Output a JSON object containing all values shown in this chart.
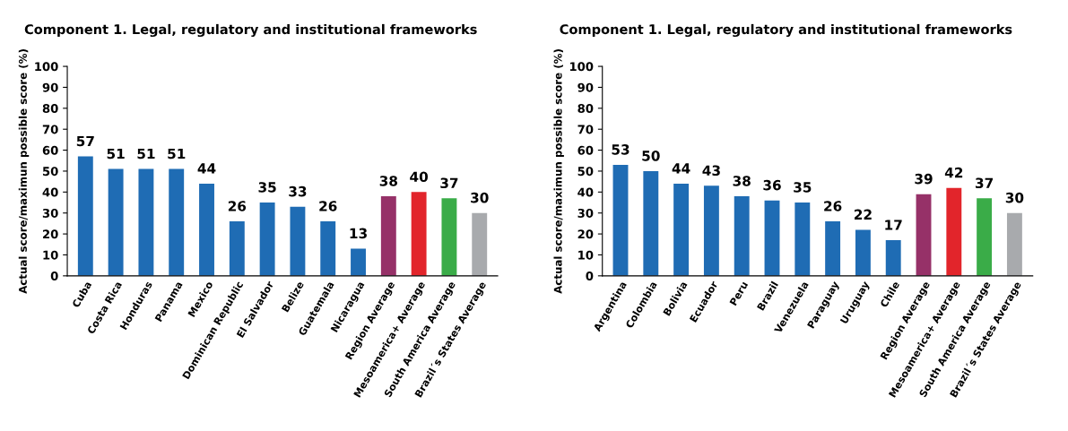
{
  "chart_data": [
    {
      "type": "bar",
      "title": "Component 1. Legal, regulatory and institutional frameworks",
      "ylabel": "Actual score/maximun possible score (%)",
      "categories": [
        "Cuba",
        "Costa Rica",
        "Honduras",
        "Panama",
        "Mexico",
        "Dominican Republic",
        "El Salvador",
        "Belize",
        "Guatemala",
        "Nicaragua",
        "Region Average",
        "Mesoamerica+ Average",
        "South America Average",
        "Brazil´s States Average"
      ],
      "values": [
        57,
        51,
        51,
        51,
        44,
        26,
        35,
        33,
        26,
        13,
        38,
        40,
        37,
        30
      ],
      "value_labels": [
        "57",
        "51",
        "51",
        "51",
        "44",
        "26",
        "35",
        "33",
        "26",
        "13",
        "38",
        "40",
        "37",
        "30"
      ],
      "colors": [
        "#1f6cb4",
        "#1f6cb4",
        "#1f6cb4",
        "#1f6cb4",
        "#1f6cb4",
        "#1f6cb4",
        "#1f6cb4",
        "#1f6cb4",
        "#1f6cb4",
        "#1f6cb4",
        "#963168",
        "#e2252b",
        "#3aac48",
        "#a8aaad"
      ],
      "ylim": [
        0,
        100
      ],
      "yticks": [
        0,
        10,
        20,
        30,
        40,
        50,
        60,
        70,
        80,
        90,
        100
      ]
    },
    {
      "type": "bar",
      "title": "Component 1. Legal, regulatory and institutional frameworks",
      "ylabel": "Actual score/maximun possible score (%)",
      "categories": [
        "Argentina",
        "Colombia",
        "Bolivia",
        "Ecuador",
        "Peru",
        "Brazil",
        "Venezuela",
        "Paraguay",
        "Uruguay",
        "Chile",
        "Region Average",
        "Mesoamerica+ Average",
        "South America Average",
        "Brazil´s States Average"
      ],
      "values": [
        53,
        50,
        44,
        43,
        38,
        36,
        35,
        26,
        22,
        17,
        39,
        42,
        37,
        30
      ],
      "value_labels": [
        "53",
        "50",
        "44",
        "43",
        "38",
        "36",
        "35",
        "26",
        "22",
        "17",
        "39",
        "42",
        "37",
        "30"
      ],
      "colors": [
        "#1f6cb4",
        "#1f6cb4",
        "#1f6cb4",
        "#1f6cb4",
        "#1f6cb4",
        "#1f6cb4",
        "#1f6cb4",
        "#1f6cb4",
        "#1f6cb4",
        "#1f6cb4",
        "#963168",
        "#e2252b",
        "#3aac48",
        "#a8aaad"
      ],
      "ylim": [
        0,
        100
      ],
      "yticks": [
        0,
        10,
        20,
        30,
        40,
        50,
        60,
        70,
        80,
        90,
        100
      ]
    }
  ]
}
